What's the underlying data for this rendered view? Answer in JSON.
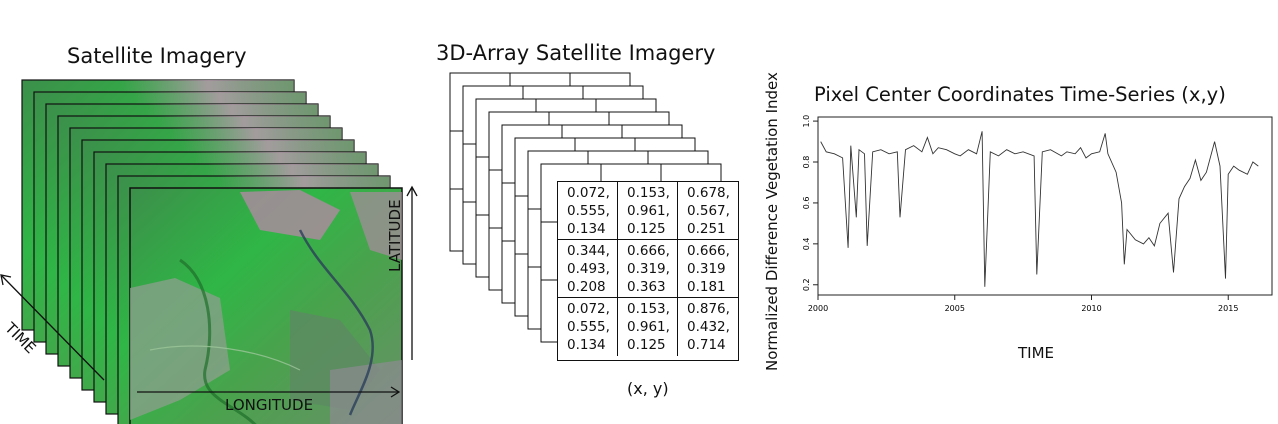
{
  "left_panel": {
    "title": "Satellite Imagery",
    "x_axis_label": "LONGITUDE",
    "y_axis_label": "LATITUDE",
    "time_label": "TIME"
  },
  "middle_panel": {
    "title": "3D-Array Satellite Imagery",
    "coord_label": "(x, y)",
    "cells": [
      "0.072,\n0.555,\n0.134",
      "0.153,\n0.961,\n0.125",
      "0.678,\n0.567,\n0.251",
      "0.344,\n0.493,\n0.208",
      "0.666,\n0.319,\n0.363",
      "0.666,\n0.319\n0.181",
      "0.072,\n0.555,\n0.134",
      "0.153,\n0.961,\n0.125",
      "0.876,\n0.432,\n0.714"
    ]
  },
  "right_panel": {
    "title": "Pixel Center Coordinates Time-Series (x,y)",
    "chart_data": {
      "type": "line",
      "title": "Pixel Center Coordinates Time-Series (x,y)",
      "xlabel": "TIME",
      "ylabel": "Normalized Difference Vegetation Index",
      "x_ticks": [
        "2000",
        "2005",
        "2010",
        "2015"
      ],
      "y_ticks": [
        "0.2",
        "0.4",
        "0.6",
        "0.8",
        "1.0"
      ],
      "xlim": [
        2000,
        2016.6
      ],
      "ylim": [
        0.15,
        1.02
      ],
      "series": [
        {
          "x": [
            2000.1,
            2000.3,
            2000.6,
            2000.9,
            2001.1,
            2001.2,
            2001.4,
            2001.5,
            2001.7,
            2001.8,
            2002.0,
            2002.3,
            2002.6,
            2002.9,
            2003.0,
            2003.2,
            2003.5,
            2003.8,
            2004.0,
            2004.2,
            2004.4,
            2004.7,
            2005.0,
            2005.2,
            2005.5,
            2005.8,
            2006.0,
            2006.1,
            2006.3,
            2006.6,
            2006.9,
            2007.2,
            2007.5,
            2007.9,
            2008.0,
            2008.2,
            2008.5,
            2008.9,
            2009.1,
            2009.4,
            2009.6,
            2009.8,
            2010.0,
            2010.3,
            2010.5,
            2010.6,
            2010.9,
            2011.1,
            2011.2,
            2011.3,
            2011.6,
            2011.9,
            2012.1,
            2012.3,
            2012.5,
            2012.8,
            2013.0,
            2013.2,
            2013.4,
            2013.6,
            2013.8,
            2014.0,
            2014.2,
            2014.5,
            2014.7,
            2014.9,
            2015.0,
            2015.2,
            2015.4,
            2015.7,
            2015.9,
            2016.1
          ],
          "y": [
            0.9,
            0.85,
            0.84,
            0.82,
            0.38,
            0.88,
            0.53,
            0.86,
            0.84,
            0.39,
            0.85,
            0.86,
            0.84,
            0.85,
            0.53,
            0.86,
            0.88,
            0.85,
            0.92,
            0.84,
            0.87,
            0.86,
            0.84,
            0.83,
            0.86,
            0.84,
            0.95,
            0.19,
            0.85,
            0.83,
            0.86,
            0.84,
            0.85,
            0.83,
            0.25,
            0.85,
            0.86,
            0.83,
            0.85,
            0.84,
            0.87,
            0.82,
            0.84,
            0.85,
            0.94,
            0.84,
            0.75,
            0.6,
            0.3,
            0.47,
            0.42,
            0.4,
            0.43,
            0.39,
            0.5,
            0.55,
            0.26,
            0.62,
            0.68,
            0.72,
            0.81,
            0.71,
            0.75,
            0.9,
            0.78,
            0.23,
            0.74,
            0.78,
            0.76,
            0.74,
            0.8,
            0.78
          ]
        }
      ]
    }
  }
}
